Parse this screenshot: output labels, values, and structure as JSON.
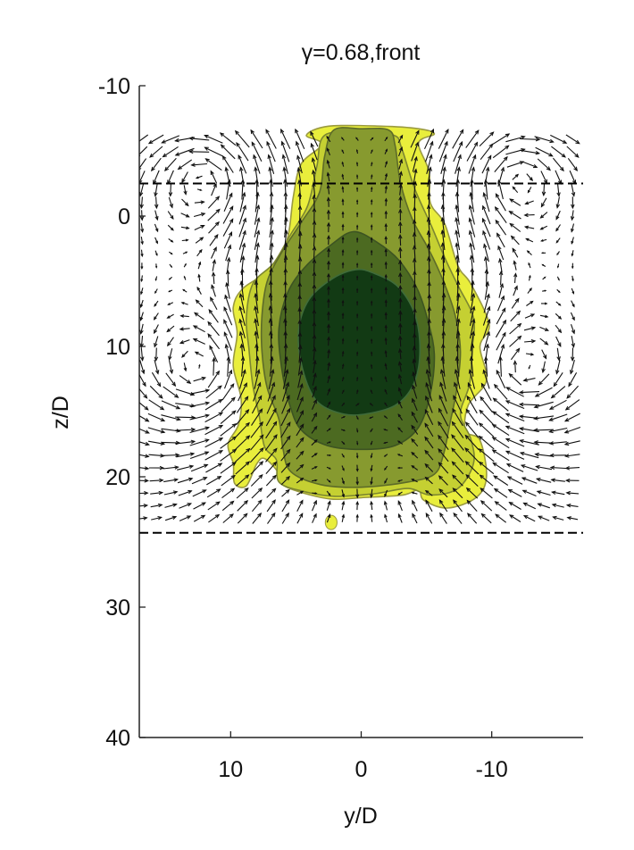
{
  "chart_data": {
    "type": "contour",
    "title": "γ=0.68,front",
    "xlabel": "y/D",
    "ylabel": "z/D",
    "xlim": [
      17,
      -17
    ],
    "ylim": [
      -10,
      40
    ],
    "x_ticks": [
      {
        "value": 10,
        "label": "10"
      },
      {
        "value": 0,
        "label": "0"
      },
      {
        "value": -10,
        "label": "-10"
      }
    ],
    "y_ticks": [
      {
        "value": -10,
        "label": "-10"
      },
      {
        "value": 0,
        "label": "0"
      },
      {
        "value": 10,
        "label": "10"
      },
      {
        "value": 20,
        "label": "20"
      },
      {
        "value": 30,
        "label": "30"
      },
      {
        "value": 40,
        "label": "40"
      }
    ],
    "reference_lines": [
      {
        "style": "dashed",
        "z": -2.5
      },
      {
        "style": "dashed",
        "z": 24.3
      }
    ],
    "contour_levels": [
      {
        "level": 1,
        "color": "#e9ee3c",
        "outline": "#9a9a40",
        "points": [
          [
            4.2,
            -6.2
          ],
          [
            3,
            -5.5
          ],
          [
            4.6,
            -4
          ],
          [
            5.2,
            -1.5
          ],
          [
            5.6,
            1.5
          ],
          [
            6.5,
            3.8
          ],
          [
            9,
            5.5
          ],
          [
            9.8,
            7
          ],
          [
            9.5,
            9
          ],
          [
            9.8,
            11.5
          ],
          [
            9.2,
            14
          ],
          [
            9.4,
            16
          ],
          [
            10.2,
            17.5
          ],
          [
            9.8,
            19
          ],
          [
            9.7,
            20.5
          ],
          [
            8.8,
            20.7
          ],
          [
            8,
            19
          ],
          [
            7.4,
            18.6
          ],
          [
            6.4,
            19.6
          ],
          [
            6.2,
            20.4
          ],
          [
            5.2,
            21
          ],
          [
            2.4,
            21.7
          ],
          [
            0,
            21.6
          ],
          [
            -3.2,
            21.4
          ],
          [
            -4.4,
            21
          ],
          [
            -4.8,
            21.8
          ],
          [
            -6.6,
            22.4
          ],
          [
            -8.8,
            21.6
          ],
          [
            -9.6,
            20
          ],
          [
            -9.1,
            17.2
          ],
          [
            -8,
            16.5
          ],
          [
            -8.2,
            14.5
          ],
          [
            -9.6,
            12.6
          ],
          [
            -9.1,
            10
          ],
          [
            -9.8,
            8.3
          ],
          [
            -8.4,
            5.2
          ],
          [
            -7.4,
            3.8
          ],
          [
            -6.4,
            0.6
          ],
          [
            -5.3,
            -1
          ],
          [
            -5.2,
            -3.4
          ],
          [
            -4.4,
            -5.6
          ],
          [
            -5.6,
            -6.3
          ],
          [
            -4.4,
            -6.7
          ],
          [
            -1.5,
            -6.9
          ],
          [
            2.5,
            -6.9
          ]
        ]
      },
      {
        "level": 2,
        "color": "#c5d032",
        "outline": "#7c8630",
        "points": [
          [
            2.8,
            -6.2
          ],
          [
            3.4,
            -3.8
          ],
          [
            4.1,
            -0.8
          ],
          [
            5.4,
            1.4
          ],
          [
            6.7,
            3.6
          ],
          [
            8.3,
            5.2
          ],
          [
            8.8,
            7.8
          ],
          [
            8.6,
            10.2
          ],
          [
            8.3,
            13
          ],
          [
            7.8,
            15.4
          ],
          [
            7.4,
            17.7
          ],
          [
            6.5,
            18.7
          ],
          [
            6.3,
            20.4
          ],
          [
            4.5,
            21.1
          ],
          [
            2,
            21.5
          ],
          [
            -1,
            21.3
          ],
          [
            -3.6,
            20.9
          ],
          [
            -5.3,
            21.4
          ],
          [
            -7.4,
            20.9
          ],
          [
            -8.6,
            19
          ],
          [
            -8.4,
            17.1
          ],
          [
            -7.6,
            15.2
          ],
          [
            -8.3,
            12.9
          ],
          [
            -8.5,
            10.2
          ],
          [
            -8.6,
            7.8
          ],
          [
            -7.4,
            5.3
          ],
          [
            -6.4,
            3.2
          ],
          [
            -5.4,
            0.8
          ],
          [
            -4.1,
            -2.1
          ],
          [
            -3.1,
            -5.2
          ],
          [
            -2.5,
            -6.2
          ],
          [
            0,
            -6.4
          ]
        ]
      },
      {
        "level": 3,
        "color": "#879a2f",
        "outline": "#5d6b28",
        "points": [
          [
            2.1,
            -6.6
          ],
          [
            2.8,
            -4.6
          ],
          [
            3.2,
            -1.8
          ],
          [
            4.6,
            0.5
          ],
          [
            6.1,
            2.8
          ],
          [
            7.2,
            5
          ],
          [
            7.6,
            7.6
          ],
          [
            7.6,
            10.4
          ],
          [
            7.2,
            13.2
          ],
          [
            6.3,
            15.6
          ],
          [
            6,
            17.8
          ],
          [
            5.4,
            19.6
          ],
          [
            3.1,
            20.6
          ],
          [
            0,
            20.8
          ],
          [
            -3.6,
            20.4
          ],
          [
            -5.6,
            19.8
          ],
          [
            -6.3,
            18.3
          ],
          [
            -6.8,
            15.9
          ],
          [
            -7.3,
            13.4
          ],
          [
            -7.6,
            10.4
          ],
          [
            -7.2,
            7.6
          ],
          [
            -6.3,
            5
          ],
          [
            -5.2,
            2.6
          ],
          [
            -3.9,
            0.2
          ],
          [
            -3,
            -2.6
          ],
          [
            -2.6,
            -5.4
          ],
          [
            -2.1,
            -6.6
          ],
          [
            0,
            -6.7
          ]
        ]
      },
      {
        "level": 4,
        "color": "#4c6a21",
        "outline": "#3d5422",
        "points": [
          [
            0.6,
            1.2
          ],
          [
            2.3,
            2.2
          ],
          [
            4.2,
            3.8
          ],
          [
            5.6,
            5.8
          ],
          [
            6.3,
            8.6
          ],
          [
            6.1,
            11.6
          ],
          [
            5.5,
            14.4
          ],
          [
            4.6,
            16.4
          ],
          [
            2.6,
            17.6
          ],
          [
            0,
            17.9
          ],
          [
            -2.6,
            17.6
          ],
          [
            -4.4,
            16.2
          ],
          [
            -5.3,
            13.6
          ],
          [
            -5.6,
            10.6
          ],
          [
            -5.1,
            8
          ],
          [
            -4.3,
            5.6
          ],
          [
            -2.9,
            3.4
          ],
          [
            -1.2,
            2
          ]
        ]
      },
      {
        "level": 5,
        "color": "#123a14",
        "outline": "#3f6b3a",
        "points": [
          [
            0.4,
            4.1
          ],
          [
            2.2,
            4.8
          ],
          [
            4,
            6.4
          ],
          [
            4.8,
            8.8
          ],
          [
            4.5,
            11.7
          ],
          [
            3.4,
            14.2
          ],
          [
            1.3,
            15.2
          ],
          [
            -0.8,
            15.1
          ],
          [
            -2.8,
            14.4
          ],
          [
            -4.1,
            12.7
          ],
          [
            -4.5,
            10.2
          ],
          [
            -4.1,
            7.5
          ],
          [
            -2.8,
            5.4
          ],
          [
            -1,
            4.4
          ]
        ]
      }
    ],
    "islands": [
      {
        "level": 1,
        "color": "#e9ee3c",
        "center": [
          2.3,
          23.5
        ],
        "radius": [
          0.45,
          0.55
        ]
      }
    ],
    "velocity_field": {
      "y_range": [
        16.8,
        -16.8
      ],
      "z_range": [
        -5.9,
        23.6
      ],
      "grid_spacing": [
        1.1,
        0.97
      ],
      "arrow_color": "#111111"
    }
  }
}
